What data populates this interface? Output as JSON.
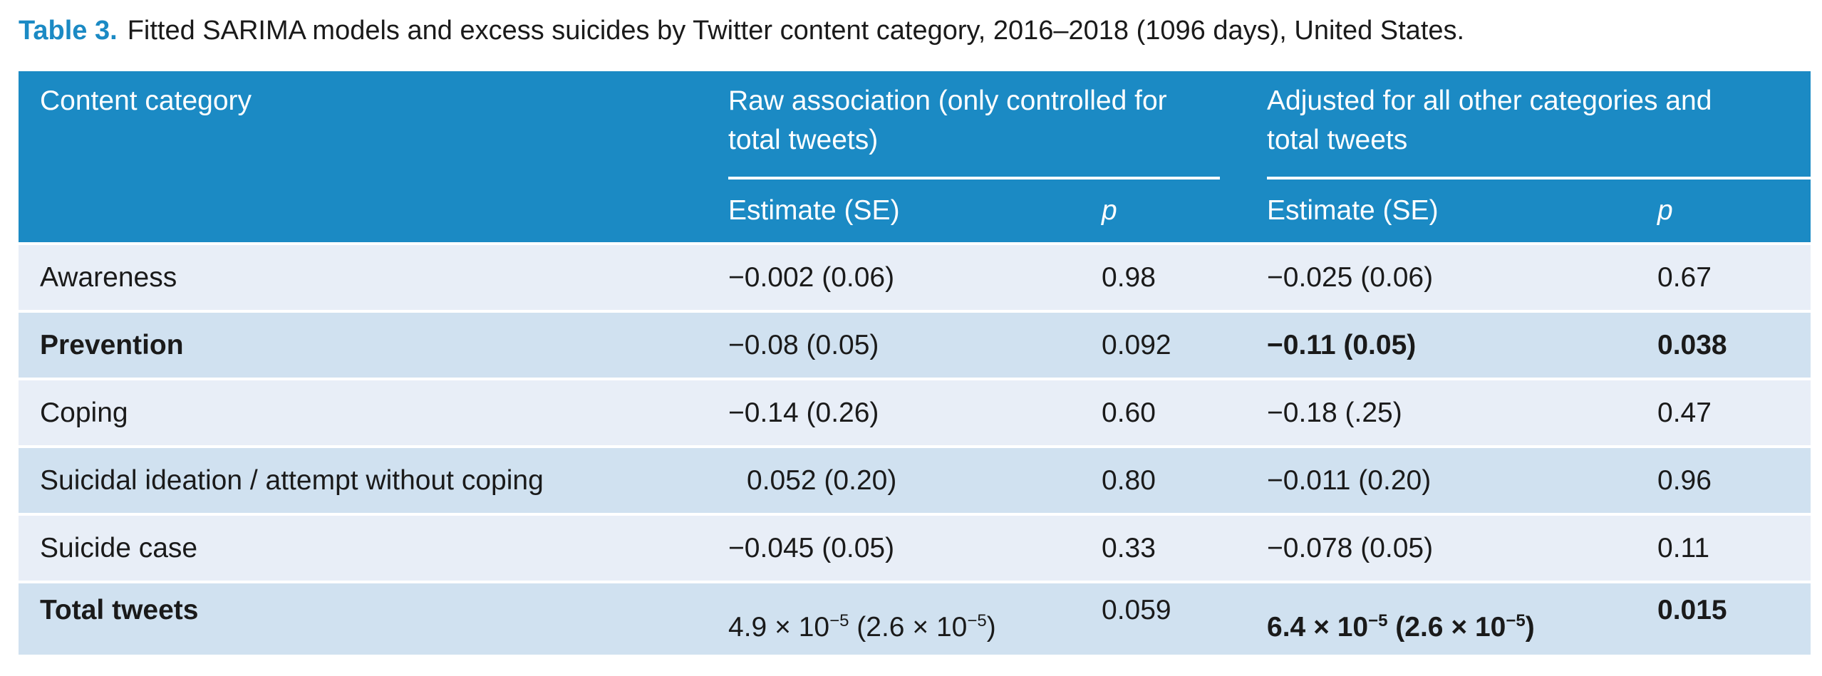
{
  "caption": {
    "label": "Table 3.",
    "text": "Fitted SARIMA models and excess suicides by Twitter content category, 2016–2018 (1096 days), United States."
  },
  "header": {
    "col_category": "Content category",
    "group_raw": "Raw association (only controlled for total tweets)",
    "group_raw_line1": "Raw association (only controlled for",
    "group_raw_line2": "total tweets)",
    "group_adjusted": "Adjusted for all other categories and total tweets",
    "group_adjusted_line1": "Adjusted for all other categories and",
    "group_adjusted_line2": "total tweets",
    "sub_estimate": "Estimate (SE)",
    "sub_p": "p"
  },
  "rows": [
    {
      "category": "Awareness",
      "raw_estimate": "−0.002 (0.06)",
      "raw_p": "0.98",
      "adj_estimate": "−0.025 (0.06)",
      "adj_p": "0.67",
      "bold": false
    },
    {
      "category": "Prevention",
      "raw_estimate": "−0.08 (0.05)",
      "raw_p": "0.092",
      "adj_estimate": "−0.11 (0.05)",
      "adj_p": "0.038",
      "bold": true
    },
    {
      "category": "Coping",
      "raw_estimate": "−0.14 (0.26)",
      "raw_p": "0.60",
      "adj_estimate": "−0.18 (.25)",
      "adj_p": "0.47",
      "bold": false
    },
    {
      "category": "Suicidal ideation / attempt without coping",
      "raw_estimate": "0.052 (0.20)",
      "raw_p": "0.80",
      "adj_estimate": "−0.011 (0.20)",
      "adj_p": "0.96",
      "bold": false
    },
    {
      "category": "Suicide case",
      "raw_estimate": "−0.045 (0.05)",
      "raw_p": "0.33",
      "adj_estimate": "−0.078 (0.05)",
      "adj_p": "0.11",
      "bold": false
    }
  ],
  "total_row": {
    "category": "Total tweets",
    "raw_estimate": {
      "coef": "4.9",
      "coef_exp": "−5",
      "se": "2.6",
      "se_exp": "−5"
    },
    "raw_p": "0.059",
    "adj_estimate": {
      "coef": "6.4",
      "coef_exp": "−5",
      "se": "2.6",
      "se_exp": "−5"
    },
    "adj_p": "0.015",
    "bold": true
  },
  "sci": {
    "times": "×",
    "base": "10"
  },
  "colors": {
    "header_bg": "#1b8ac4",
    "row_light": "#e8eef7",
    "row_dark": "#d0e1f0",
    "caption_label": "#1b8ac4"
  }
}
